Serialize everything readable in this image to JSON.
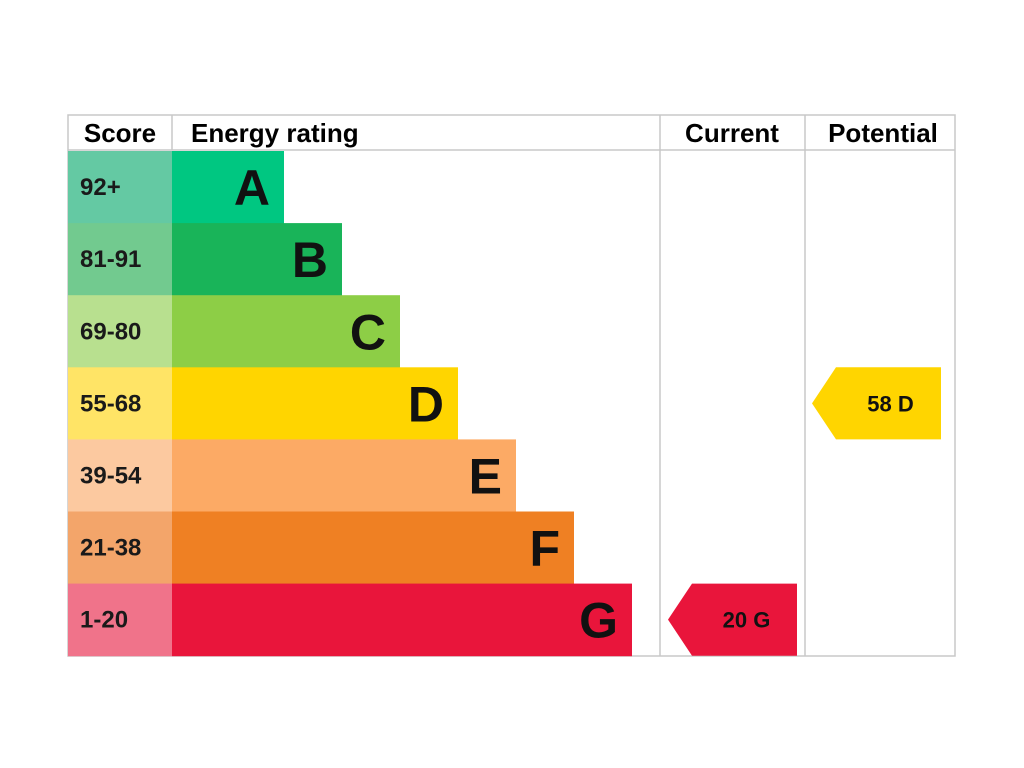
{
  "headers": {
    "score": "Score",
    "energy_rating": "Energy rating",
    "current": "Current",
    "potential": "Potential"
  },
  "chart_data": {
    "type": "bar",
    "categories": [
      "A",
      "B",
      "C",
      "D",
      "E",
      "F",
      "G"
    ],
    "bands": [
      {
        "letter": "A",
        "range": "92+",
        "color": "#00c781",
        "score_color": "#64c9a3"
      },
      {
        "letter": "B",
        "range": "81-91",
        "color": "#19b459",
        "score_color": "#72ca8f"
      },
      {
        "letter": "C",
        "range": "69-80",
        "color": "#8dce46",
        "score_color": "#b8e08f"
      },
      {
        "letter": "D",
        "range": "55-68",
        "color": "#ffd500",
        "score_color": "#ffe466"
      },
      {
        "letter": "E",
        "range": "39-54",
        "color": "#fcaa65",
        "score_color": "#fcc9a0"
      },
      {
        "letter": "F",
        "range": "21-38",
        "color": "#ef8023",
        "score_color": "#f3a56a"
      },
      {
        "letter": "G",
        "range": "1-20",
        "color": "#e9153b",
        "score_color": "#f0738a"
      }
    ],
    "current": {
      "value": 20,
      "band": "G",
      "label": "20  G"
    },
    "potential": {
      "value": 58,
      "band": "D",
      "label": "58  D"
    }
  }
}
